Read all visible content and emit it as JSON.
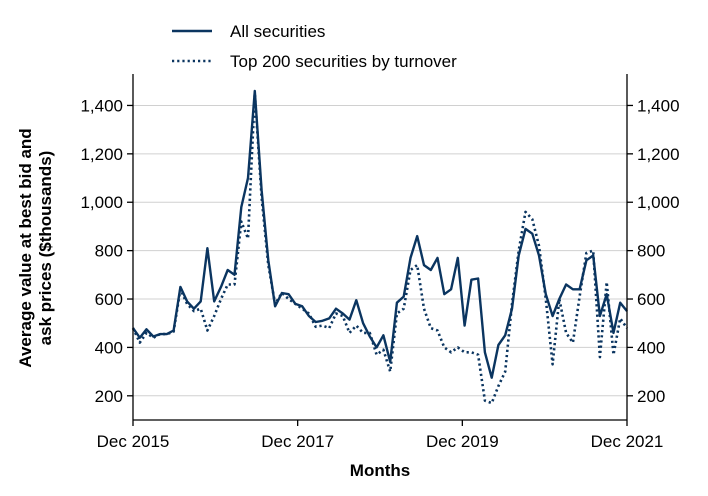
{
  "chart_data": {
    "type": "line",
    "xlabel": "Months",
    "ylabel_lines": [
      "Average value at best bid and",
      "ask prices ($thousands)"
    ],
    "x_ticks": [
      "Dec 2015",
      "Dec 2017",
      "Dec 2019",
      "Dec 2021"
    ],
    "y_ticks": [
      "200",
      "400",
      "600",
      "800",
      "1,000",
      "1,200",
      "1,400"
    ],
    "y_tick_values": [
      200,
      400,
      600,
      800,
      1000,
      1200,
      1400
    ],
    "ylim": [
      100,
      1530
    ],
    "x_start": "2015-12",
    "x_end": "2021-12",
    "grid": "horizontal",
    "legend_position": "top-left",
    "line_color": "#0b3560",
    "series": [
      {
        "name": "All securities",
        "style": "solid",
        "values": [
          480,
          440,
          475,
          445,
          455,
          455,
          470,
          650,
          590,
          560,
          590,
          810,
          590,
          650,
          720,
          700,
          980,
          1100,
          1460,
          1050,
          760,
          570,
          625,
          620,
          580,
          570,
          530,
          505,
          510,
          520,
          560,
          540,
          515,
          595,
          500,
          445,
          400,
          450,
          340,
          585,
          610,
          770,
          860,
          740,
          720,
          770,
          620,
          640,
          770,
          490,
          680,
          685,
          380,
          275,
          410,
          450,
          560,
          780,
          890,
          870,
          780,
          620,
          530,
          600,
          660,
          640,
          640,
          760,
          780,
          530,
          620,
          460,
          585,
          550
        ]
      },
      {
        "name": "Top 200 securities by turnover",
        "style": "dotted",
        "values": [
          480,
          420,
          460,
          440,
          455,
          455,
          465,
          640,
          580,
          550,
          560,
          470,
          530,
          600,
          660,
          660,
          920,
          850,
          1450,
          1020,
          740,
          580,
          625,
          600,
          580,
          560,
          540,
          485,
          490,
          480,
          540,
          530,
          460,
          490,
          460,
          460,
          370,
          390,
          300,
          540,
          560,
          720,
          740,
          560,
          480,
          470,
          400,
          380,
          400,
          380,
          380,
          370,
          180,
          170,
          240,
          300,
          580,
          800,
          960,
          930,
          820,
          600,
          330,
          600,
          460,
          420,
          610,
          790,
          800,
          360,
          670,
          370,
          520,
          480
        ]
      }
    ]
  }
}
